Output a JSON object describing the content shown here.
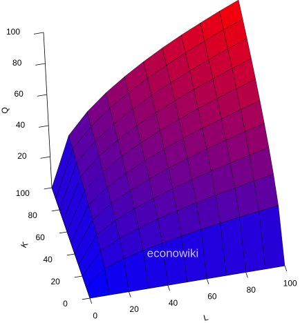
{
  "chart_data": {
    "type": "surface",
    "xlabel": "L",
    "ylabel": "K",
    "zlabel": "Q",
    "watermark": "econowiki",
    "x": [
      0,
      10,
      20,
      30,
      40,
      50,
      60,
      70,
      80,
      90,
      100
    ],
    "y": [
      0,
      10,
      20,
      30,
      40,
      50,
      60,
      70,
      80,
      90,
      100
    ],
    "z": [
      [
        0,
        0,
        0,
        0,
        0,
        0,
        0,
        0,
        0,
        0,
        0
      ],
      [
        0,
        10,
        14.1,
        17.3,
        20,
        22.4,
        24.5,
        26.5,
        28.3,
        30,
        31.6
      ],
      [
        0,
        14.1,
        20,
        24.5,
        28.3,
        31.6,
        34.6,
        37.4,
        40,
        42.4,
        44.7
      ],
      [
        0,
        17.3,
        24.5,
        30,
        34.6,
        38.7,
        42.4,
        45.8,
        49,
        52,
        54.8
      ],
      [
        0,
        20,
        28.3,
        34.6,
        40,
        44.7,
        49,
        52.9,
        56.6,
        60,
        63.2
      ],
      [
        0,
        22.4,
        31.6,
        38.7,
        44.7,
        50,
        54.8,
        59.2,
        63.2,
        67.1,
        70.7
      ],
      [
        0,
        24.5,
        34.6,
        42.4,
        49,
        54.8,
        60,
        64.8,
        69.3,
        73.5,
        77.5
      ],
      [
        0,
        26.5,
        37.4,
        45.8,
        52.9,
        59.2,
        64.8,
        70,
        74.8,
        79.4,
        83.7
      ],
      [
        0,
        28.3,
        40,
        49,
        56.6,
        63.2,
        69.3,
        74.8,
        80,
        84.9,
        89.4
      ],
      [
        0,
        30,
        42.4,
        52,
        60,
        67.1,
        73.5,
        79.4,
        84.9,
        90,
        94.9
      ],
      [
        0,
        31.6,
        44.7,
        54.8,
        63.2,
        70.7,
        77.5,
        83.7,
        89.4,
        94.9,
        100
      ]
    ],
    "xlim": [
      0,
      100
    ],
    "ylim": [
      0,
      100
    ],
    "zlim": [
      0,
      100
    ],
    "xticks": [
      0,
      20,
      40,
      60,
      80,
      100
    ],
    "yticks": [
      0,
      20,
      40,
      60,
      80,
      100
    ],
    "zticks": [
      20,
      40,
      60,
      80,
      100
    ],
    "colormap": [
      "#0000ff",
      "#ff0000"
    ]
  }
}
